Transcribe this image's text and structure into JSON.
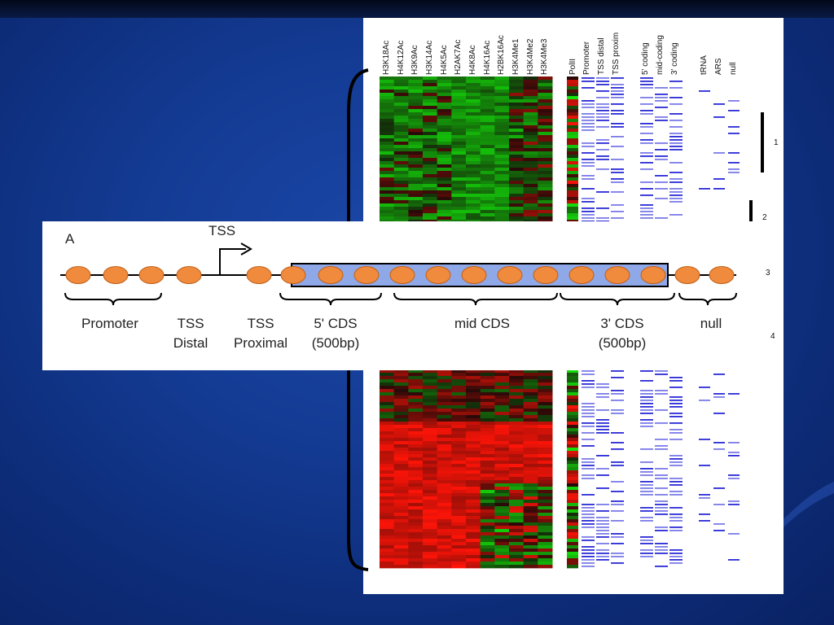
{
  "slide": {
    "background_color": "#143c95",
    "figure": {
      "histone_columns": [
        "H3K18Ac",
        "H4K12Ac",
        "H3K9Ac",
        "H3K14Ac",
        "H4K5Ac",
        "H2AK7Ac",
        "H4K8Ac",
        "H4K16Ac",
        "H2BK16Ac",
        "H3K4Me1",
        "H3K4Me2",
        "H3K4Me3"
      ],
      "polii_label": "PolII",
      "region_columns": [
        "Promoter",
        "TSS distal",
        "TSS proxim"
      ],
      "coding_columns": [
        "5' coding",
        "mid-coding",
        "3' coding"
      ],
      "other_columns": [
        "tRNA",
        "ARS",
        "null"
      ],
      "cluster_numbers": [
        "1",
        "2",
        "3",
        "4"
      ],
      "colors": {
        "high": "#ff1a0a",
        "low": "#22e016",
        "mark": "#2a2ad6"
      }
    },
    "inset": {
      "panel_letter": "A",
      "tss_arrow_label": "TSS",
      "labels": {
        "promoter": "Promoter",
        "tss_distal_1": "TSS",
        "tss_distal_2": "Distal",
        "tss_proximal_1": "TSS",
        "tss_proximal_2": "Proximal",
        "cds5_1": "5' CDS",
        "cds5_2": "(500bp)",
        "mid_cds": "mid CDS",
        "cds3_1": "3' CDS",
        "cds3_2": "(500bp)",
        "null": "null"
      },
      "colors": {
        "nucleosome": "#f08a3c",
        "coding_box": "#8fa8e8"
      }
    }
  }
}
